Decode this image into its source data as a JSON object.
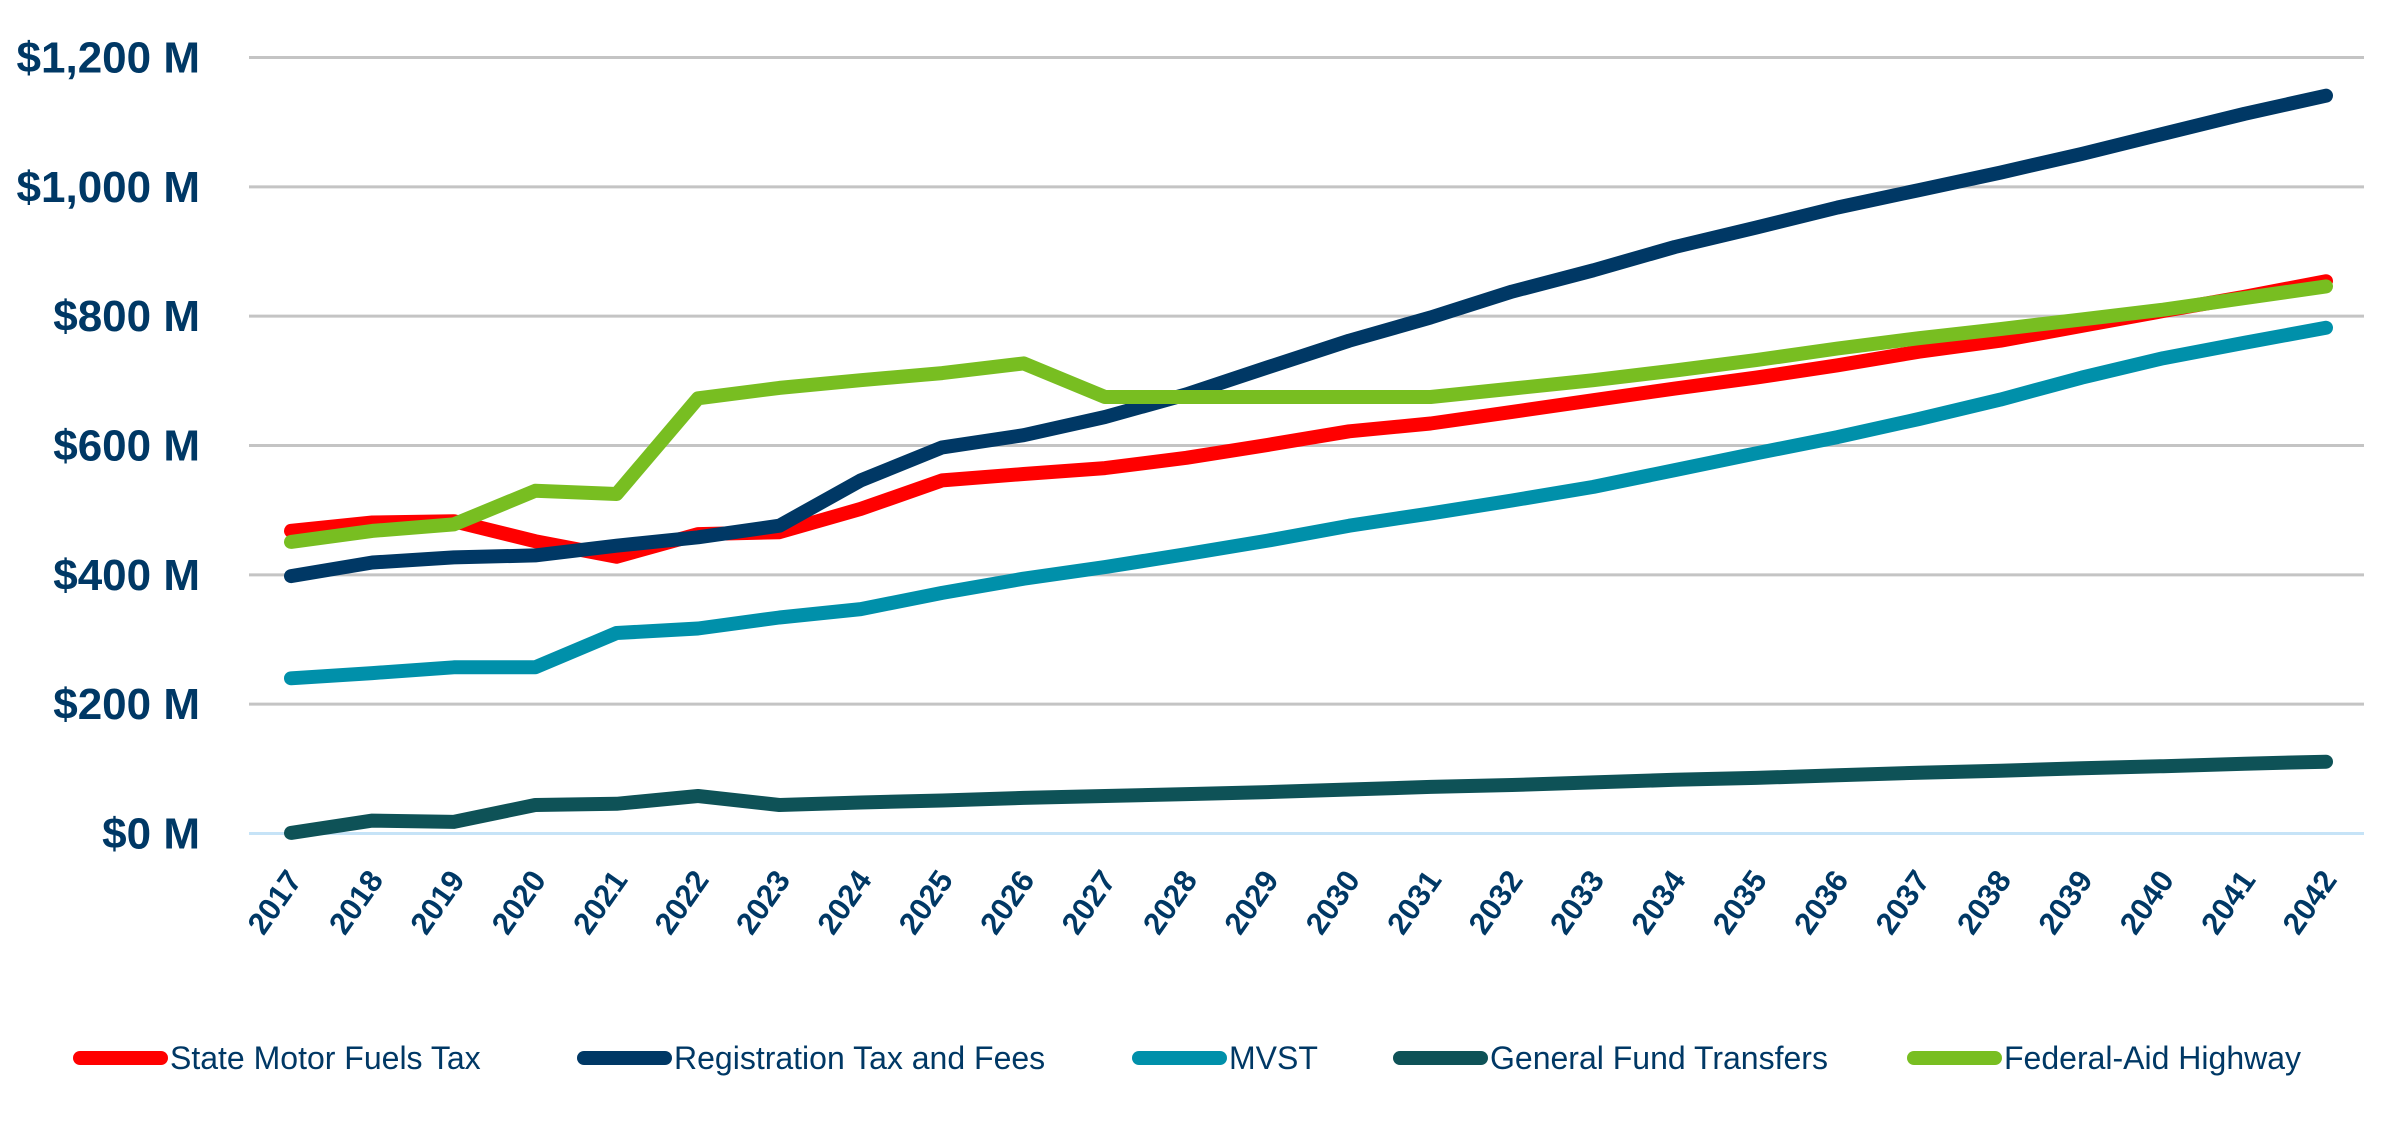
{
  "chart_data": {
    "type": "line",
    "title": "",
    "xlabel": "",
    "ylabel": "",
    "ylim": [
      0,
      1200
    ],
    "y_ticks": [
      0,
      200,
      400,
      600,
      800,
      1000,
      1200
    ],
    "y_tick_labels": [
      "$0 M",
      "$200 M",
      "$400 M",
      "$600 M",
      "$800 M",
      "$1,000 M",
      "$1,200 M"
    ],
    "grid": true,
    "legend_position": "bottom",
    "x": [
      "2017",
      "2018",
      "2019",
      "2020",
      "2021",
      "2022",
      "2023",
      "2024",
      "2025",
      "2026",
      "2027",
      "2028",
      "2029",
      "2030",
      "2031",
      "2032",
      "2033",
      "2034",
      "2035",
      "2036",
      "2037",
      "2038",
      "2039",
      "2040",
      "2041",
      "2042"
    ],
    "series": [
      {
        "name": "State Motor Fuels Tax",
        "color": "#FF0000",
        "values": [
          468,
          481,
          483,
          452,
          428,
          463,
          466,
          502,
          546,
          556,
          565,
          581,
          601,
          622,
          634,
          652,
          670,
          688,
          705,
          724,
          745,
          762,
          785,
          808,
          830,
          854
        ]
      },
      {
        "name": "Registration Tax and Fees",
        "color": "#003865",
        "values": [
          398,
          419,
          427,
          430,
          445,
          458,
          476,
          546,
          597,
          616,
          644,
          679,
          721,
          762,
          798,
          838,
          871,
          907,
          937,
          968,
          995,
          1022,
          1051,
          1082,
          1113,
          1141
        ]
      },
      {
        "name": "MVST",
        "color": "#0090AA",
        "values": [
          240,
          248,
          257,
          257,
          310,
          317,
          334,
          347,
          372,
          394,
          412,
          432,
          453,
          476,
          495,
          515,
          536,
          562,
          588,
          613,
          641,
          671,
          705,
          735,
          759,
          782
        ]
      },
      {
        "name": "General Fund Transfers",
        "color": "#0E5257",
        "values": [
          1,
          20,
          18,
          44,
          46,
          58,
          44,
          48,
          51,
          55,
          58,
          61,
          64,
          68,
          72,
          75,
          79,
          83,
          86,
          90,
          94,
          97,
          101,
          104,
          108,
          111
        ]
      },
      {
        "name": "Federal-Aid Highway",
        "color": "#78BE21",
        "values": [
          451,
          468,
          478,
          530,
          525,
          673,
          689,
          701,
          712,
          727,
          675,
          675,
          675,
          675,
          675,
          688,
          701,
          716,
          732,
          750,
          766,
          780,
          795,
          810,
          828,
          846
        ]
      }
    ]
  }
}
